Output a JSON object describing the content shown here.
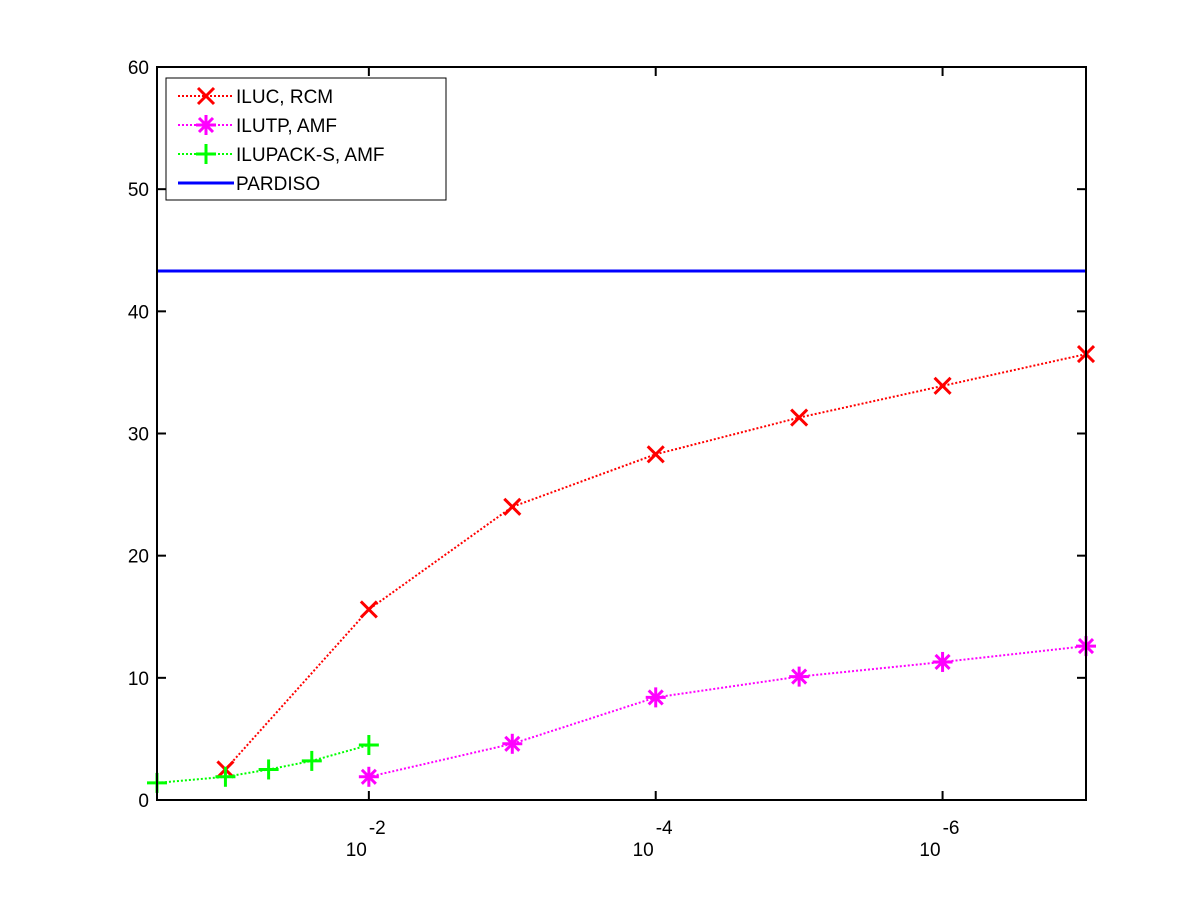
{
  "chart_data": {
    "type": "line",
    "title": "",
    "xlabel": "",
    "ylabel": "",
    "x_scale": "log-reversed",
    "xlim": [
      0.3,
      1e-07
    ],
    "ylim": [
      0,
      60
    ],
    "y_ticks": [
      0,
      10,
      20,
      30,
      40,
      50,
      60
    ],
    "x_ticks": [
      {
        "value": 0.01,
        "base": "10",
        "exp": "-2"
      },
      {
        "value": 0.0001,
        "base": "10",
        "exp": "-4"
      },
      {
        "value": 1e-06,
        "base": "10",
        "exp": "-6"
      }
    ],
    "grid": false,
    "legend_position": "top-left",
    "series": [
      {
        "name": "ILUC, RCM",
        "color": "#ff0000",
        "line": "dotted",
        "marker": "x",
        "x": [
          0.1,
          0.01,
          0.001,
          0.0001,
          1e-05,
          1e-06,
          1e-07
        ],
        "y": [
          2.5,
          15.6,
          24.0,
          28.3,
          31.3,
          33.9,
          36.5
        ]
      },
      {
        "name": "ILUTP, AMF",
        "color": "#ff00ff",
        "line": "dotted",
        "marker": "asterisk",
        "x": [
          0.01,
          0.001,
          0.0001,
          1e-05,
          1e-06,
          1e-07
        ],
        "y": [
          1.9,
          4.6,
          8.4,
          10.1,
          11.3,
          12.6
        ]
      },
      {
        "name": "ILUPACK-S, AMF",
        "color": "#00ff00",
        "line": "dotted",
        "marker": "plus",
        "x": [
          0.3,
          0.1,
          0.05,
          0.025,
          0.01
        ],
        "y": [
          1.4,
          1.9,
          2.5,
          3.2,
          4.5
        ]
      },
      {
        "name": "PARDISO",
        "color": "#0000ff",
        "line": "solid",
        "marker": "none",
        "x": [
          0.3,
          1e-07
        ],
        "y": [
          43.3,
          43.3
        ]
      }
    ]
  }
}
